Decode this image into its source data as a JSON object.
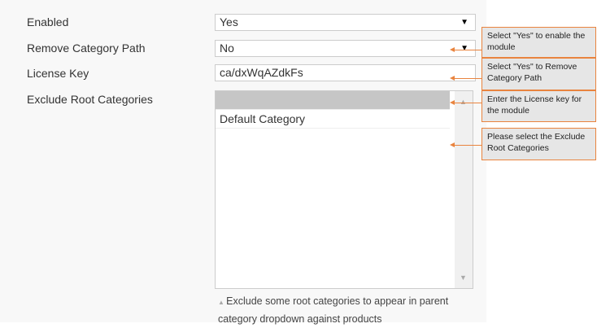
{
  "fields": {
    "enabled": {
      "label": "Enabled",
      "value": "Yes"
    },
    "remove_path": {
      "label": "Remove Category Path",
      "value": "No"
    },
    "license": {
      "label": "License Key",
      "value": "ca/dxWqAZdkFs"
    },
    "exclude": {
      "label": "Exclude Root Categories",
      "options": [
        "",
        "Default Category"
      ],
      "help": "Exclude some root categories to appear in parent category dropdown against products"
    }
  },
  "callouts": [
    "Select \"Yes\" to enable the module",
    "Select \"Yes\" to Remove Category Path",
    "Enter the License key for the module",
    "Please select the Exclude Root Categories"
  ],
  "colors": {
    "accent": "#e9843f"
  }
}
